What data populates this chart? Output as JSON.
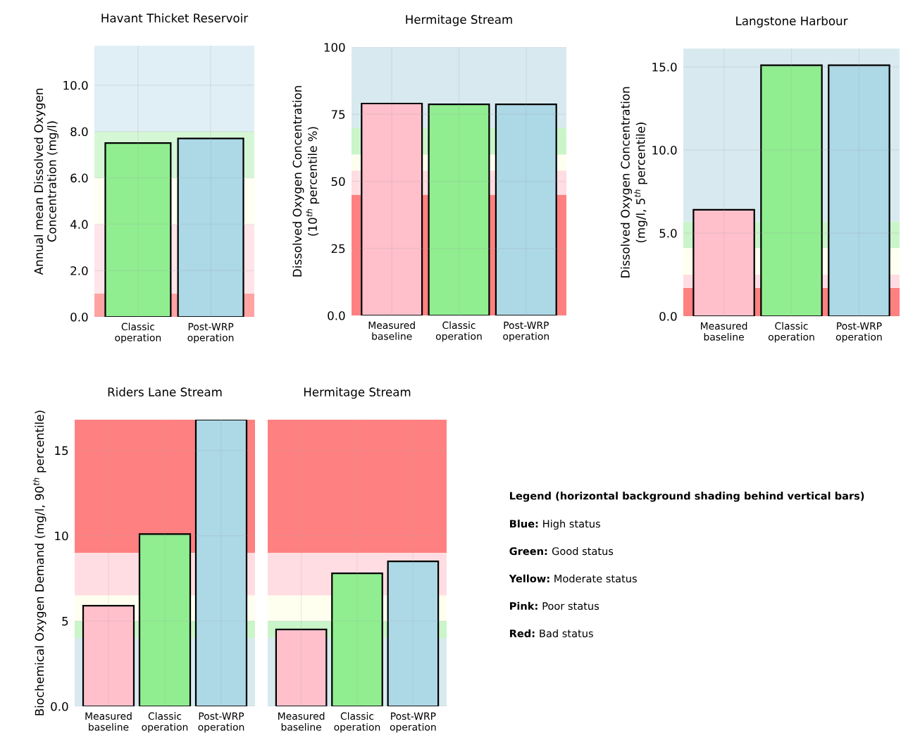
{
  "chart_data": [
    {
      "type": "bar",
      "title": "Havant Thicket Reservoir",
      "ylabel": "Annual mean Dissolved Oxygen\nConcentration (mg/l)",
      "categories": [
        "Classic\noperation",
        "Post-WRP\noperation"
      ],
      "values": [
        7.5,
        7.7
      ],
      "colors": [
        "#90ee90",
        "#add8e6"
      ],
      "ylim": [
        0,
        11.7
      ],
      "yticks": [
        {
          "value": 0,
          "label": "0.0"
        },
        {
          "value": 2,
          "label": "2.0"
        },
        {
          "value": 4,
          "label": "4.0"
        },
        {
          "value": 6,
          "label": "6.0"
        },
        {
          "value": 8,
          "label": "8.0"
        },
        {
          "value": 10,
          "label": "10.0"
        }
      ],
      "grid": true,
      "bands": [
        {
          "axis": "y",
          "from": 0,
          "to": 1,
          "color": "#ffa3a3"
        },
        {
          "axis": "y",
          "from": 1,
          "to": 4,
          "color": "#ffe4e9"
        },
        {
          "axis": "y",
          "from": 4,
          "to": 6,
          "color": "#fffff2"
        },
        {
          "axis": "y",
          "from": 6,
          "to": 8,
          "color": "#d6f7d6"
        },
        {
          "axis": "y",
          "from": 8,
          "to": 11.7,
          "color": "#e0eff5"
        }
      ]
    },
    {
      "type": "bar",
      "title": "Hermitage Stream",
      "ylabel": "Dissolved Oxygen Concentration\n(10$^{th}$ percentile %)",
      "categories": [
        "Measured\nbaseline",
        "Classic\noperation",
        "Post-WRP\noperation"
      ],
      "values": [
        79,
        78.7,
        78.7
      ],
      "colors": [
        "#ffc0cb",
        "#90ee90",
        "#add8e6"
      ],
      "ylim": [
        0,
        100
      ],
      "yticks": [
        {
          "value": 0,
          "label": "0.0"
        },
        25,
        50,
        75,
        100
      ],
      "grid": true,
      "bands": [
        {
          "axis": "y",
          "from": 0,
          "to": 45,
          "color": "#ff8080"
        },
        {
          "axis": "y",
          "from": 45,
          "to": 54,
          "color": "#ffdde2"
        },
        {
          "axis": "y",
          "from": 54,
          "to": 60,
          "color": "#fffff0"
        },
        {
          "axis": "y",
          "from": 60,
          "to": 70,
          "color": "#c9f5c9"
        },
        {
          "axis": "y",
          "from": 70,
          "to": 100,
          "color": "#d8eaf0"
        }
      ]
    },
    {
      "type": "bar",
      "title": "Langstone Harbour",
      "ylabel": "Dissolved Oxygen Concentration\n(mg/l, 5$^{th}$ percentile)",
      "categories": [
        "Measured\nbaseline",
        "Classic\noperation",
        "Post-WRP\noperation"
      ],
      "values": [
        6.4,
        15.1,
        15.1
      ],
      "colors": [
        "#ffc0cb",
        "#90ee90",
        "#add8e6"
      ],
      "ylim": [
        0,
        16.1
      ],
      "yticks": [
        {
          "value": 0,
          "label": "0.0"
        },
        {
          "value": 5,
          "label": "5.0"
        },
        {
          "value": 10,
          "label": "10.0"
        },
        {
          "value": 15,
          "label": "15.0"
        }
      ],
      "grid": true,
      "bands": [
        {
          "axis": "y",
          "from": 0,
          "to": 1.7,
          "color": "#ff8080"
        },
        {
          "axis": "y",
          "from": 1.7,
          "to": 2.5,
          "color": "#ffdde2"
        },
        {
          "axis": "y",
          "from": 2.5,
          "to": 4.1,
          "color": "#fffff0"
        },
        {
          "axis": "y",
          "from": 4.1,
          "to": 5.7,
          "color": "#c9f5c9"
        },
        {
          "axis": "y",
          "from": 5.7,
          "to": 16.1,
          "color": "#d8eaf0"
        }
      ]
    },
    {
      "type": "bar",
      "title": "Riders Lane Stream",
      "ylabel": "Biochemical Oxygen Demand (mg/l, 90$^{th}$ percentile)",
      "categories": [
        "Measured\nbaseline",
        "Classic\noperation",
        "Post-WRP\noperation"
      ],
      "values": [
        5.9,
        10.1,
        16.8
      ],
      "colors": [
        "#ffc0cb",
        "#90ee90",
        "#add8e6"
      ],
      "ylim": [
        0,
        16.8
      ],
      "yticks": [
        {
          "value": 0,
          "label": "0.0"
        },
        5,
        10,
        15
      ],
      "grid": true,
      "bands": [
        {
          "axis": "y",
          "from": 0,
          "to": 4,
          "color": "#d8eaf0"
        },
        {
          "axis": "y",
          "from": 4,
          "to": 5,
          "color": "#c9f5c9"
        },
        {
          "axis": "y",
          "from": 5,
          "to": 6.5,
          "color": "#fffff0"
        },
        {
          "axis": "y",
          "from": 6.5,
          "to": 9,
          "color": "#ffdde2"
        },
        {
          "axis": "y",
          "from": 9,
          "to": 16.8,
          "color": "#ff8080"
        }
      ]
    },
    {
      "type": "bar",
      "title": "Hermitage Stream",
      "categories": [
        "Measured\nbaseline",
        "Classic\noperation",
        "Post-WRP\noperation"
      ],
      "values": [
        4.5,
        7.8,
        8.5
      ],
      "colors": [
        "#ffc0cb",
        "#90ee90",
        "#add8e6"
      ],
      "ylim": [
        0,
        16.8
      ],
      "yticks": [
        0,
        5,
        10,
        15
      ],
      "tick_labels": "x",
      "grid": true,
      "bands": [
        {
          "axis": "y",
          "from": 0,
          "to": 4,
          "color": "#d8eaf0"
        },
        {
          "axis": "y",
          "from": 4,
          "to": 5,
          "color": "#c9f5c9"
        },
        {
          "axis": "y",
          "from": 5,
          "to": 6.5,
          "color": "#fffff0"
        },
        {
          "axis": "y",
          "from": 6.5,
          "to": 9,
          "color": "#ffdde2"
        },
        {
          "axis": "y",
          "from": 9,
          "to": 16.8,
          "color": "#ff8080"
        }
      ]
    },
    {
      "type": "other",
      "title": "Legend (horizontal background shading behind vertical bars)",
      "annotations": [
        "Blue: High status",
        "Green: Good status",
        "Yellow: Moderate status",
        "Pink: Poor status",
        "Red: Bad status"
      ]
    }
  ]
}
